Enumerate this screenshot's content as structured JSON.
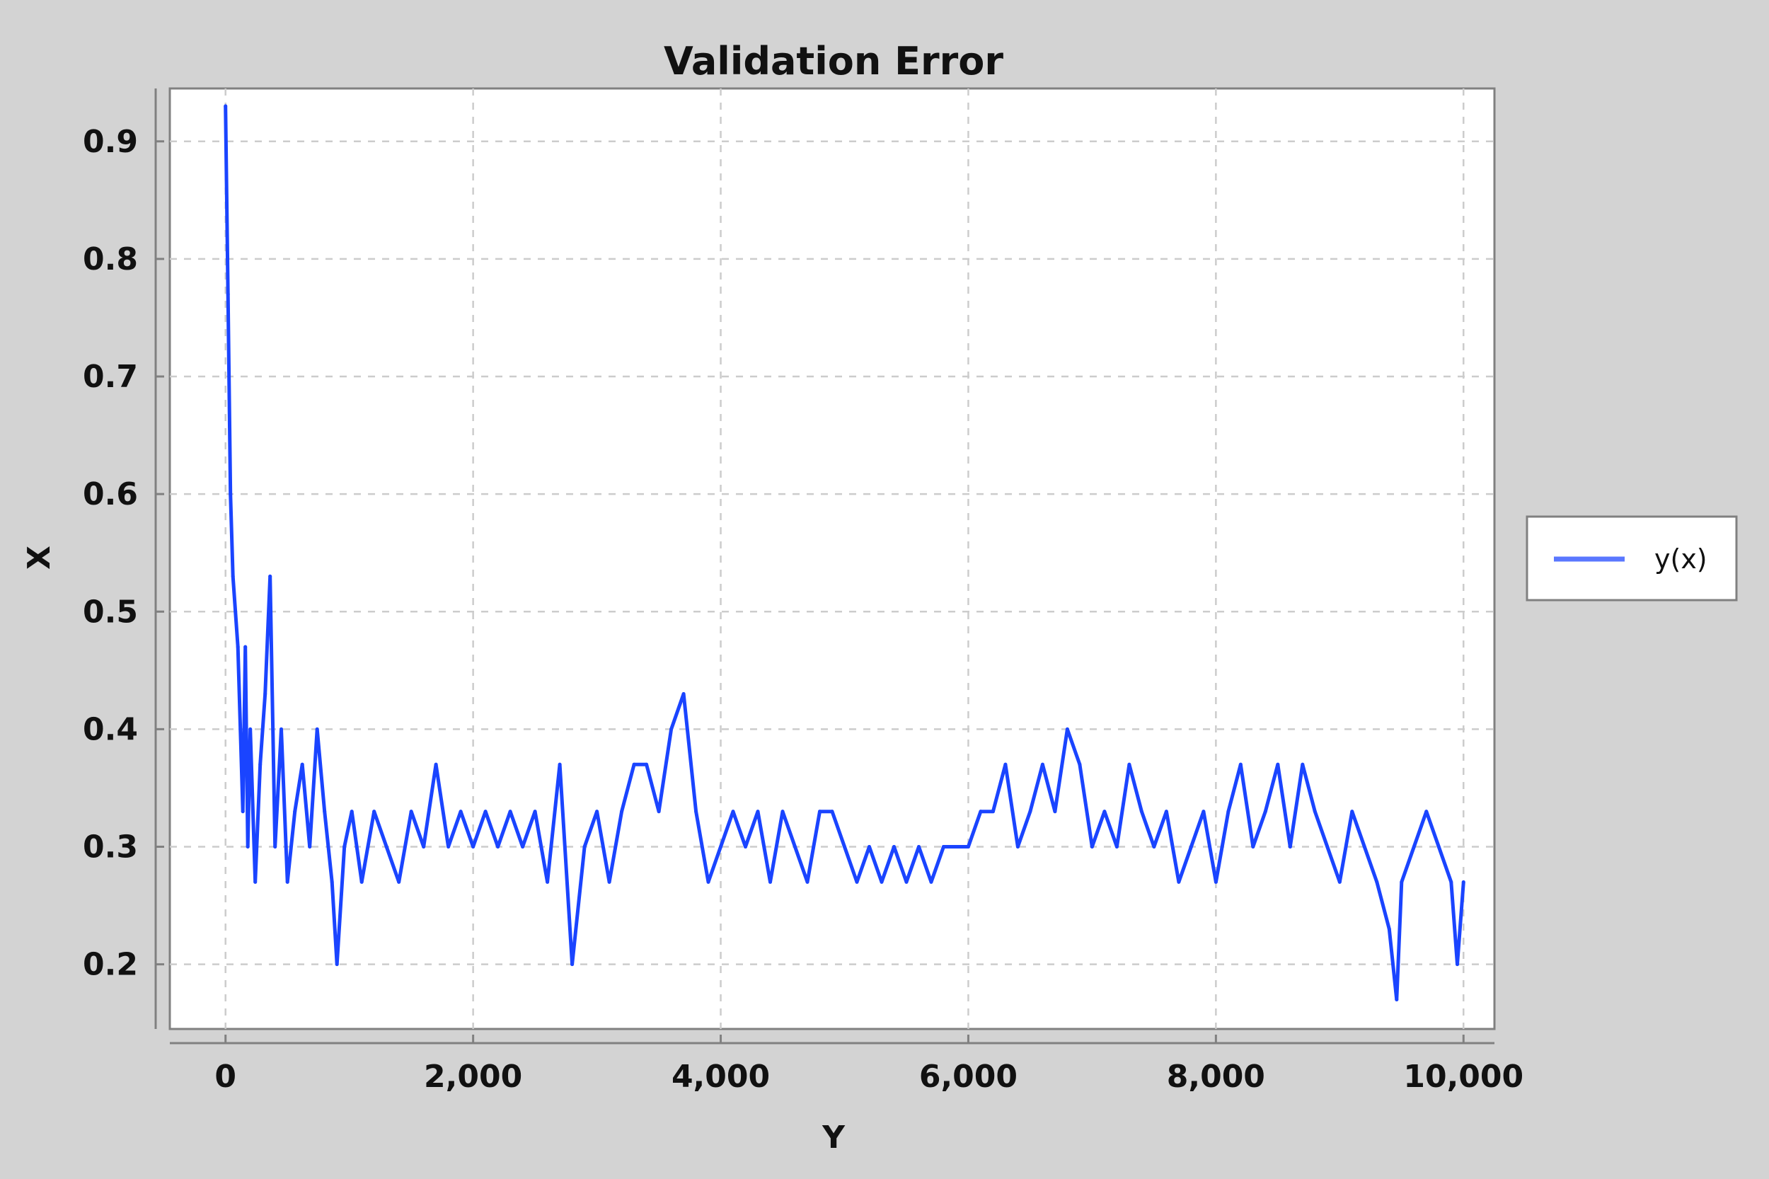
{
  "chart_data": {
    "type": "line",
    "title": "Validation Error",
    "xlabel": "Y",
    "ylabel": "X",
    "xlim": [
      -450,
      10250
    ],
    "ylim": [
      0.145,
      0.945
    ],
    "x_ticks": [
      0,
      2000,
      4000,
      6000,
      8000,
      10000
    ],
    "x_tick_labels": [
      "0",
      "2,000",
      "4,000",
      "6,000",
      "8,000",
      "10,000"
    ],
    "y_ticks": [
      0.2,
      0.3,
      0.4,
      0.5,
      0.6,
      0.7,
      0.8,
      0.9
    ],
    "y_tick_labels": [
      "0.2",
      "0.3",
      "0.4",
      "0.5",
      "0.6",
      "0.7",
      "0.8",
      "0.9"
    ],
    "grid": true,
    "legend_position": "right",
    "colors": {
      "background": "#d3d3d3",
      "plot": "#ffffff",
      "series": "#1a44ff",
      "grid": "#cccccc"
    },
    "series": [
      {
        "name": "y(x)",
        "x": [
          0,
          20,
          40,
          60,
          80,
          100,
          120,
          140,
          160,
          180,
          200,
          240,
          280,
          320,
          360,
          400,
          450,
          500,
          560,
          620,
          680,
          740,
          800,
          860,
          900,
          960,
          1020,
          1100,
          1150,
          1200,
          1300,
          1400,
          1500,
          1600,
          1700,
          1800,
          1900,
          2000,
          2100,
          2200,
          2300,
          2400,
          2500,
          2600,
          2700,
          2800,
          2900,
          3000,
          3100,
          3200,
          3300,
          3400,
          3500,
          3600,
          3700,
          3800,
          3900,
          4000,
          4100,
          4200,
          4300,
          4400,
          4500,
          4600,
          4700,
          4800,
          4900,
          5000,
          5100,
          5200,
          5300,
          5400,
          5500,
          5600,
          5700,
          5800,
          5900,
          6000,
          6100,
          6200,
          6300,
          6400,
          6500,
          6600,
          6700,
          6800,
          6900,
          7000,
          7100,
          7200,
          7300,
          7400,
          7500,
          7600,
          7700,
          7800,
          7900,
          8000,
          8100,
          8200,
          8300,
          8400,
          8500,
          8600,
          8700,
          8800,
          8900,
          9000,
          9100,
          9200,
          9300,
          9400,
          9460,
          9500,
          9600,
          9700,
          9800,
          9900,
          9950,
          10000
        ],
        "y": [
          0.93,
          0.77,
          0.6,
          0.53,
          0.5,
          0.47,
          0.4,
          0.33,
          0.47,
          0.3,
          0.4,
          0.27,
          0.37,
          0.43,
          0.53,
          0.3,
          0.4,
          0.27,
          0.33,
          0.37,
          0.3,
          0.4,
          0.33,
          0.27,
          0.2,
          0.3,
          0.33,
          0.27,
          0.3,
          0.33,
          0.3,
          0.27,
          0.33,
          0.3,
          0.37,
          0.3,
          0.33,
          0.3,
          0.33,
          0.3,
          0.33,
          0.3,
          0.33,
          0.27,
          0.37,
          0.2,
          0.3,
          0.33,
          0.27,
          0.33,
          0.37,
          0.37,
          0.33,
          0.4,
          0.43,
          0.33,
          0.27,
          0.3,
          0.33,
          0.3,
          0.33,
          0.27,
          0.33,
          0.3,
          0.27,
          0.33,
          0.33,
          0.3,
          0.27,
          0.3,
          0.27,
          0.3,
          0.27,
          0.3,
          0.27,
          0.3,
          0.3,
          0.3,
          0.33,
          0.33,
          0.37,
          0.3,
          0.33,
          0.37,
          0.33,
          0.4,
          0.37,
          0.3,
          0.33,
          0.3,
          0.37,
          0.33,
          0.3,
          0.33,
          0.27,
          0.3,
          0.33,
          0.27,
          0.33,
          0.37,
          0.3,
          0.33,
          0.37,
          0.3,
          0.37,
          0.33,
          0.3,
          0.27,
          0.33,
          0.3,
          0.27,
          0.23,
          0.17,
          0.27,
          0.3,
          0.33,
          0.3,
          0.27,
          0.2,
          0.27
        ]
      }
    ]
  }
}
